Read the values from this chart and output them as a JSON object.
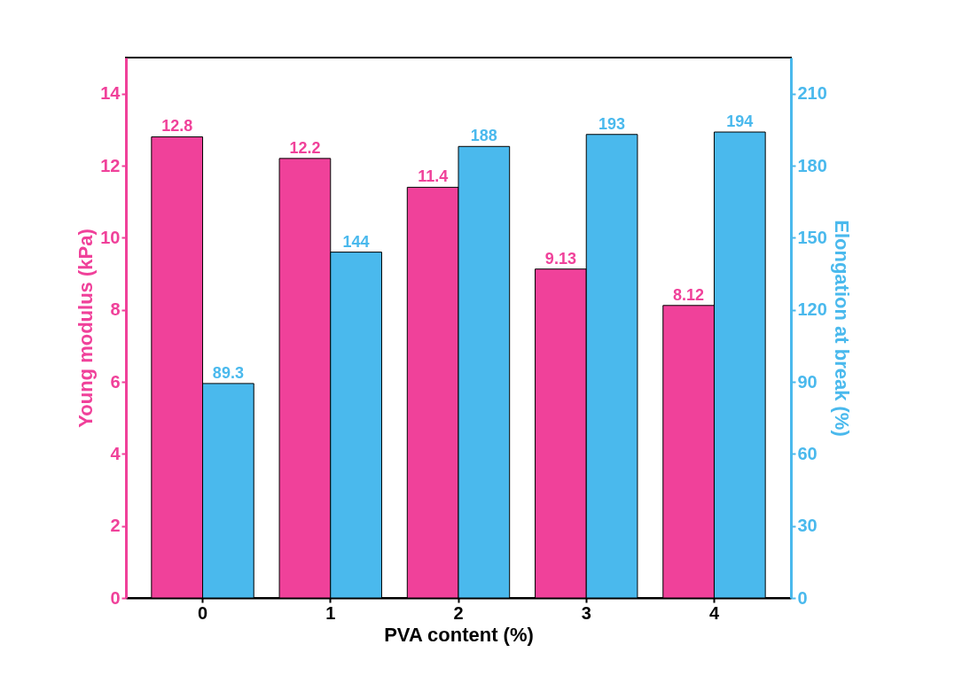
{
  "chart_data": {
    "type": "bar",
    "xlabel": "PVA content (%)",
    "ylabel": "Young modulus (kPa)",
    "y2label": "Elongation at break (%)",
    "categories": [
      "0",
      "1",
      "2",
      "3",
      "4"
    ],
    "series": [
      {
        "color": "#f0419a",
        "values": [
          12.8,
          12.2,
          11.4,
          9.13,
          8.12
        ]
      },
      {
        "color": "#4ab9ed",
        "axis": "y2",
        "values": [
          89.3,
          144,
          188,
          193,
          194
        ]
      }
    ],
    "ylim": [
      0,
      15
    ],
    "yticks": [
      0,
      2,
      4,
      6,
      8,
      10,
      12,
      14
    ],
    "y2lim": [
      0,
      225
    ],
    "y2ticks": [
      0,
      30,
      60,
      90,
      120,
      150,
      180,
      210
    ],
    "data_labels": true,
    "grid": false
  }
}
